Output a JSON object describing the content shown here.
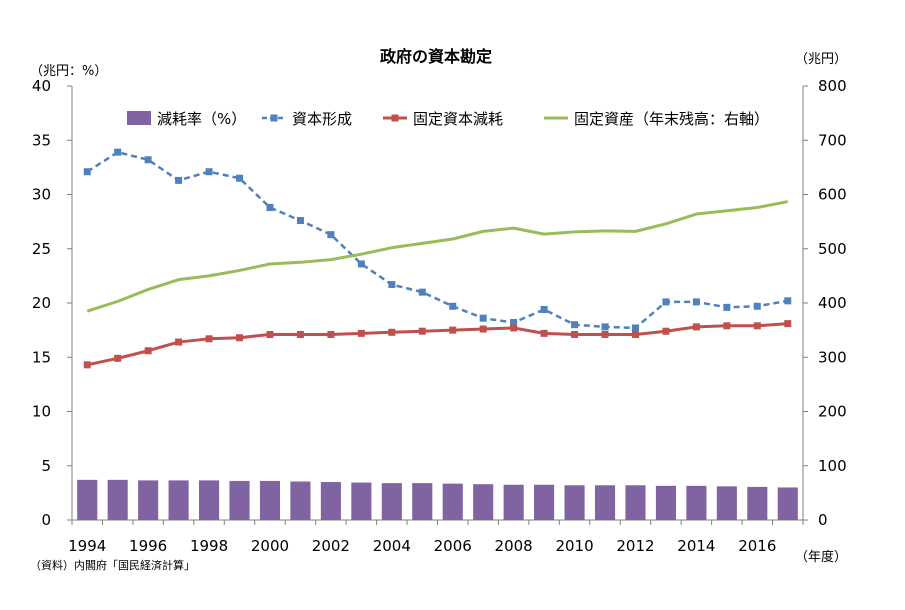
{
  "chart_data": {
    "type": "bar",
    "title": "政府の資本勘定",
    "ylabel": "（兆円：%）",
    "y2label": "（兆円）",
    "xlabel": "（年度）",
    "source": "（資料）内閣府「国民経済計算」",
    "ylim": [
      0,
      40
    ],
    "y2lim": [
      0,
      800
    ],
    "yticks": [
      0,
      5,
      10,
      15,
      20,
      25,
      30,
      35,
      40
    ],
    "y2ticks": [
      0,
      100,
      200,
      300,
      400,
      500,
      600,
      700,
      800
    ],
    "x": [
      1994,
      1995,
      1996,
      1997,
      1998,
      1999,
      2000,
      2001,
      2002,
      2003,
      2004,
      2005,
      2006,
      2007,
      2008,
      2009,
      2010,
      2011,
      2012,
      2013,
      2014,
      2015,
      2016,
      2017
    ],
    "xtick_labels": [
      "1994",
      "1996",
      "1998",
      "2000",
      "2002",
      "2004",
      "2006",
      "2008",
      "2010",
      "2012",
      "2014",
      "2016"
    ],
    "grid": false,
    "legend_position": "top",
    "series": [
      {
        "name": "減耗率（%）",
        "type": "bar",
        "axis": "left",
        "color": "#8064a2",
        "values": [
          3.7,
          3.7,
          3.65,
          3.65,
          3.65,
          3.6,
          3.6,
          3.55,
          3.5,
          3.45,
          3.4,
          3.4,
          3.35,
          3.3,
          3.25,
          3.25,
          3.2,
          3.2,
          3.2,
          3.15,
          3.15,
          3.1,
          3.05,
          3.0
        ]
      },
      {
        "name": "資本形成",
        "type": "line",
        "style": "dashed",
        "marker": "square",
        "axis": "left",
        "color": "#4f81bd",
        "values": [
          32.1,
          33.9,
          33.2,
          31.3,
          32.1,
          31.5,
          28.8,
          27.6,
          26.3,
          23.6,
          21.7,
          21.0,
          19.7,
          18.6,
          18.2,
          19.4,
          18.0,
          17.8,
          17.7,
          20.1,
          20.1,
          19.6,
          19.7,
          20.2
        ]
      },
      {
        "name": "固定資本減耗",
        "type": "line",
        "marker": "square",
        "axis": "left",
        "color": "#c0504d",
        "values": [
          14.3,
          14.9,
          15.6,
          16.4,
          16.7,
          16.8,
          17.1,
          17.1,
          17.1,
          17.2,
          17.3,
          17.4,
          17.5,
          17.6,
          17.7,
          17.2,
          17.1,
          17.1,
          17.1,
          17.4,
          17.8,
          17.9,
          17.9,
          18.1
        ]
      },
      {
        "name": "固定資産（年末残高：右軸）",
        "type": "line",
        "axis": "right",
        "color": "#9bbb59",
        "values": [
          385,
          403,
          425,
          443,
          450,
          460,
          472,
          475,
          480,
          490,
          502,
          510,
          518,
          532,
          538,
          527,
          531,
          533,
          532,
          546,
          564,
          570,
          576,
          587
        ]
      }
    ]
  }
}
